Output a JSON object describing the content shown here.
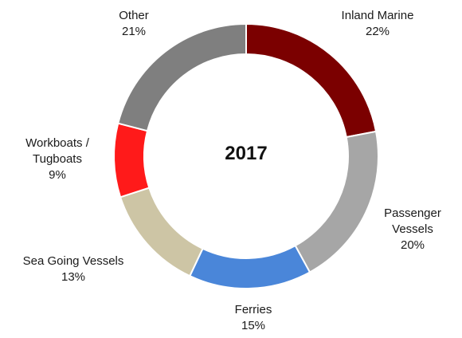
{
  "chart_data": {
    "type": "pie",
    "title": "2017",
    "categories": [
      "Inland Marine",
      "Passenger Vessels",
      "Ferries",
      "Sea Going Vessels",
      "Workboats / Tugboats",
      "Other"
    ],
    "values": [
      22,
      20,
      15,
      13,
      9,
      21
    ],
    "value_labels": [
      "22%",
      "20%",
      "15%",
      "13%",
      "9%",
      "21%"
    ],
    "colors": [
      "#7b0000",
      "#a6a6a6",
      "#4a86d9",
      "#cdc5a5",
      "#ff1a1a",
      "#7f7f7f"
    ],
    "label_lines": [
      [
        "Inland Marine"
      ],
      [
        "Passenger",
        "Vessels"
      ],
      [
        "Ferries"
      ],
      [
        "Sea Going Vessels"
      ],
      [
        "Workboats /",
        "Tugboats"
      ],
      [
        "Other"
      ]
    ],
    "style": "donut",
    "start": "top, clockwise",
    "legend": "none"
  }
}
